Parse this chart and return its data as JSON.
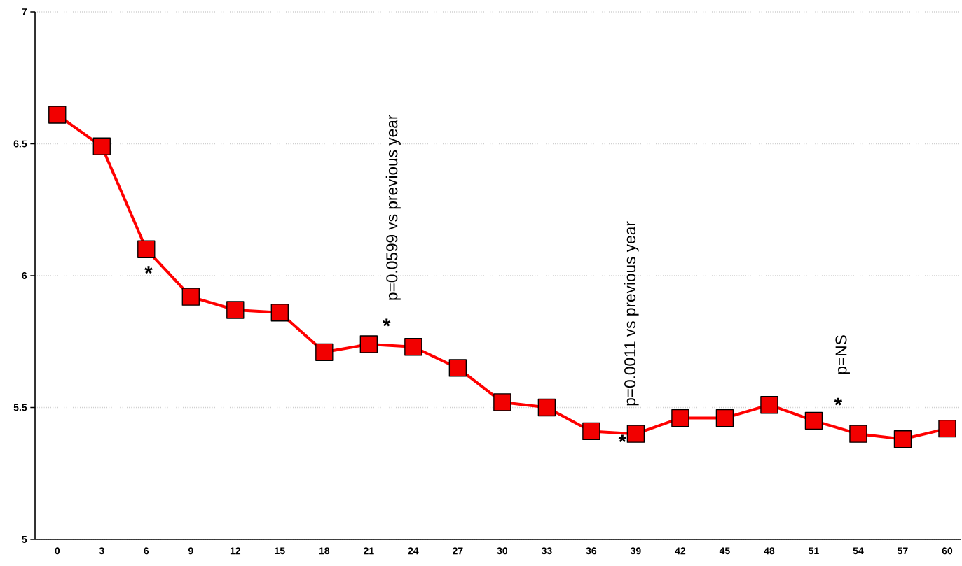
{
  "chart_data": {
    "type": "line",
    "categories": [
      "0",
      "3",
      "6",
      "9",
      "12",
      "15",
      "18",
      "21",
      "24",
      "27",
      "30",
      "33",
      "36",
      "39",
      "42",
      "45",
      "48",
      "51",
      "54",
      "57",
      "60"
    ],
    "series": [
      {
        "color": "#ff0000",
        "values": [
          6.61,
          6.49,
          6.1,
          5.92,
          5.87,
          5.86,
          5.71,
          5.74,
          5.73,
          5.65,
          5.52,
          5.5,
          5.41,
          5.4,
          5.46,
          5.46,
          5.51,
          5.45,
          5.4,
          5.38,
          5.42
        ]
      }
    ],
    "ylim": [
      5,
      7
    ],
    "yticks": [
      5,
      5.5,
      6,
      6.5,
      7
    ],
    "grid": "y",
    "marker": "square",
    "line_style": "solid",
    "annotations": [
      "*",
      "*",
      "p=0.0599 vs previous year",
      "*",
      "p=0.0011 vs previous year",
      "*",
      "p=NS"
    ]
  }
}
